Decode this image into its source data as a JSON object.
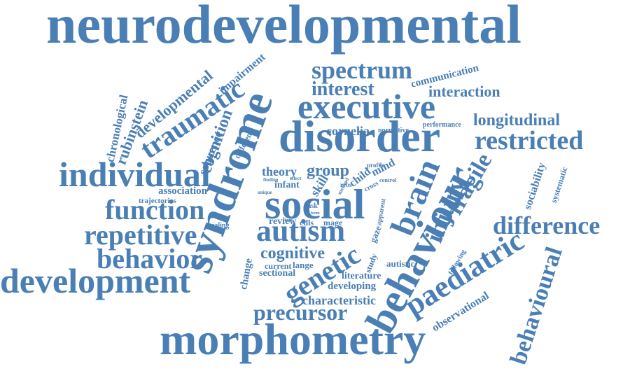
{
  "colors": {
    "text": "#4a7fb5",
    "background": "#ffffff"
  },
  "words": {
    "neurodevelopmental": "neurodevelopmental",
    "syndrome": "syndrome",
    "morphometry": "morphometry",
    "disorder": "disorder",
    "social": "social",
    "behaviour": "behaviour",
    "executive": "executive",
    "individual": "individual",
    "development": "development",
    "autism": "autism",
    "paediatric": "paediatric",
    "function": "function",
    "repetitive": "repetitive",
    "behavior": "behavior",
    "restricted": "restricted",
    "difference": "difference",
    "brain": "brain",
    "spectrum": "spectrum",
    "interest": "interest",
    "genetic": "genetic",
    "traumatic": "traumatic",
    "behavioural": "behavioural",
    "injury": "injury",
    "fragile": "fragile",
    "precursor": "precursor",
    "group": "group",
    "cognitive": "cognitive",
    "longitudinal": "longitudinal",
    "interaction": "interaction",
    "developmental": "developmental",
    "cognition": "cognition",
    "rubinstein": "rubinstein",
    "chronological": "chronological",
    "impairment": "impairment",
    "communication": "communication",
    "theory": "theory",
    "cornelia": "cornelia",
    "infant": "infant",
    "skill": "skill",
    "child": "child",
    "mind": "mind",
    "characteristic": "characteristic",
    "developing": "developing",
    "literature": "literature",
    "observational": "observational",
    "sociability": "sociability",
    "systematic": "systematic",
    "sequence": "sequence",
    "different": "different",
    "association": "association",
    "trajectories": "trajectories",
    "scaling": "scaling",
    "review": "review",
    "cdls": "cdls",
    "mage": "mage",
    "change": "change",
    "current": "current",
    "sectional": "sectional",
    "lange": "lange",
    "study": "study",
    "autistic": "autistic",
    "gaze": "gaze",
    "apparent": "apparent",
    "cross": "cross",
    "following": "following",
    "performance": "performance",
    "normative": "normative",
    "profile": "profile",
    "control": "control",
    "task": "task",
    "method": "method",
    "finding": "finding",
    "effect": "effect",
    "rrbs": "rrbs",
    "unique": "unique",
    "form": "form",
    "shape": "shape"
  }
}
